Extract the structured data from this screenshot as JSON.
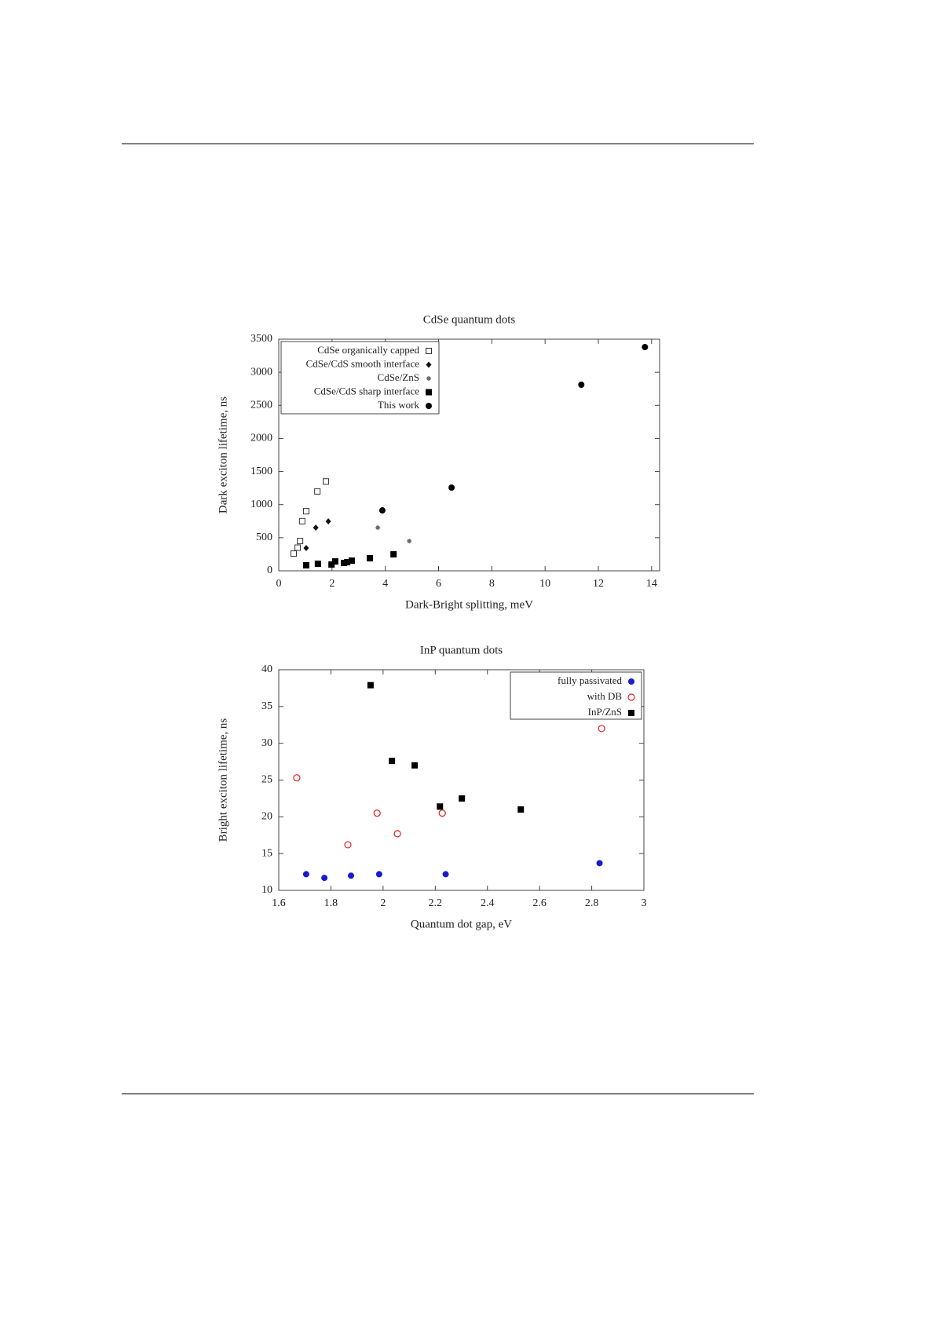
{
  "chart_data": [
    {
      "type": "scatter",
      "title": "CdSe quantum dots",
      "x_label": "Dark-Bright splitting, meV",
      "y_label": "Dark exciton lifetime, ns",
      "xlim": [
        0,
        14.3
      ],
      "ylim": [
        0,
        3500
      ],
      "xticks": [
        0,
        2,
        4,
        6,
        8,
        10,
        12,
        14
      ],
      "yticks": [
        0,
        500,
        1000,
        1500,
        2000,
        2500,
        3000,
        3500
      ],
      "legend": "upper left",
      "series": [
        {
          "name": "CdSe organically capped",
          "color": "#333333",
          "marker": "open-square",
          "x": [
            0.56,
            0.71,
            0.8,
            0.88,
            1.03,
            1.45,
            1.77
          ],
          "values": [
            260,
            350,
            450,
            750,
            900,
            1200,
            1350
          ]
        },
        {
          "name": "CdSe/CdS smooth interface",
          "color": "#111111",
          "marker": "diamond",
          "x": [
            1.03,
            1.39,
            1.86
          ],
          "values": [
            344,
            652,
            747
          ]
        },
        {
          "name": "CdSe/ZnS",
          "color": "#666666",
          "marker": "star",
          "x": [
            3.72,
            4.9
          ],
          "values": [
            652,
            450
          ]
        },
        {
          "name": "CdSe/CdS sharp interface",
          "color": "#000000",
          "marker": "filled-square",
          "x": [
            1.03,
            1.47,
            1.98,
            2.12,
            2.45,
            2.57,
            2.74,
            3.42,
            4.31
          ],
          "values": [
            83,
            107,
            95,
            142,
            119,
            130,
            154,
            190,
            249
          ]
        },
        {
          "name": "This work",
          "color": "#000000",
          "marker": "filled-circle",
          "x": [
            3.89,
            6.49,
            11.36,
            13.75
          ],
          "values": [
            913,
            1257,
            2812,
            3381
          ]
        }
      ]
    },
    {
      "type": "scatter",
      "title": "InP quantum dots",
      "x_label": "Quantum dot gap, eV",
      "y_label": "Bright exciton lifetime, ns",
      "xlim": [
        1.6,
        3
      ],
      "ylim": [
        10,
        40
      ],
      "xticks": [
        1.6,
        1.8,
        2,
        2.2,
        2.4,
        2.6,
        2.8,
        3
      ],
      "yticks": [
        10,
        15,
        20,
        25,
        30,
        35,
        40
      ],
      "legend": "upper right",
      "series": [
        {
          "name": "fully passivated",
          "color": "#1a1ad0",
          "marker": "filled-circle",
          "x": [
            1.705,
            1.775,
            1.877,
            1.985,
            2.24,
            2.83
          ],
          "values": [
            12.2,
            11.7,
            12.0,
            12.2,
            12.2,
            13.7
          ]
        },
        {
          "name": "with DB",
          "color": "#e02020",
          "marker": "open-circle",
          "x": [
            1.669,
            1.865,
            1.977,
            2.055,
            2.227,
            2.838
          ],
          "values": [
            25.3,
            16.2,
            20.5,
            17.7,
            20.5,
            32.0
          ]
        },
        {
          "name": "InP/ZnS",
          "color": "#000000",
          "marker": "filled-square",
          "x": [
            1.952,
            2.034,
            2.121,
            2.218,
            2.302,
            2.528
          ],
          "values": [
            37.9,
            27.6,
            27.0,
            21.4,
            22.5,
            21.0
          ]
        }
      ]
    }
  ]
}
